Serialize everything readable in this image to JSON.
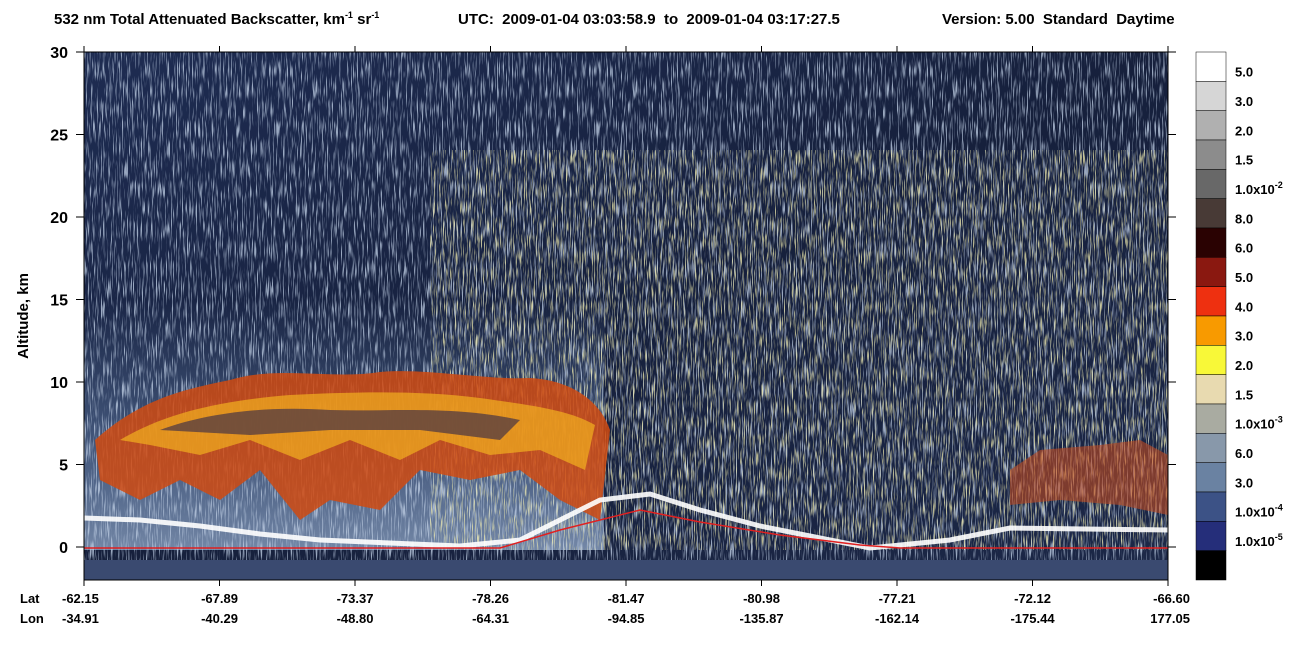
{
  "chart_data": {
    "type": "heatmap",
    "title": {
      "text": "532 nm Total Attenuated Backscatter, km",
      "sup1": "-1",
      "unit2": " sr",
      "sup2": "-1"
    },
    "utc": "UTC:  2009-01-04 03:03:58.9  to  2009-01-04 03:17:27.5",
    "version": "Version: 5.00  Standard  Daytime",
    "ylabel": "Altitude, km",
    "ylim": [
      -2,
      30
    ],
    "yticks": [
      0,
      5,
      10,
      15,
      20,
      25,
      30
    ],
    "x_row_labels": [
      "Lat",
      "Lon"
    ],
    "lat": [
      "-62.15",
      "-67.89",
      "-73.37",
      "-78.26",
      "-81.47",
      "-80.98",
      "-77.21",
      "-72.12",
      "-66.60"
    ],
    "lon": [
      "-34.91",
      "-40.29",
      "-48.80",
      "-64.31",
      "-94.85",
      "-135.87",
      "-162.14",
      "-175.44",
      "177.05"
    ],
    "colorbar": {
      "labels": [
        {
          "text": "5.0"
        },
        {
          "text": "3.0"
        },
        {
          "text": "2.0"
        },
        {
          "text": "1.5"
        },
        {
          "text": "1.0x10",
          "exp": "-2"
        },
        {
          "text": "8.0"
        },
        {
          "text": "6.0"
        },
        {
          "text": "5.0"
        },
        {
          "text": "4.0"
        },
        {
          "text": "3.0"
        },
        {
          "text": "2.0"
        },
        {
          "text": "1.5"
        },
        {
          "text": "1.0x10",
          "exp": "-3"
        },
        {
          "text": "6.0"
        },
        {
          "text": "3.0"
        },
        {
          "text": "1.0x10",
          "exp": "-4"
        },
        {
          "text": "1.0x10",
          "exp": "-5"
        }
      ],
      "colors": [
        "#ffffff",
        "#d6d6d6",
        "#b0b0b0",
        "#8c8c8c",
        "#686868",
        "#483a36",
        "#2a0202",
        "#8a1810",
        "#ee3010",
        "#f89a00",
        "#f8f838",
        "#e8dab0",
        "#a9aba1",
        "#8898aa",
        "#6a82a2",
        "#3c5286",
        "#252e7a",
        "#000000"
      ]
    }
  }
}
